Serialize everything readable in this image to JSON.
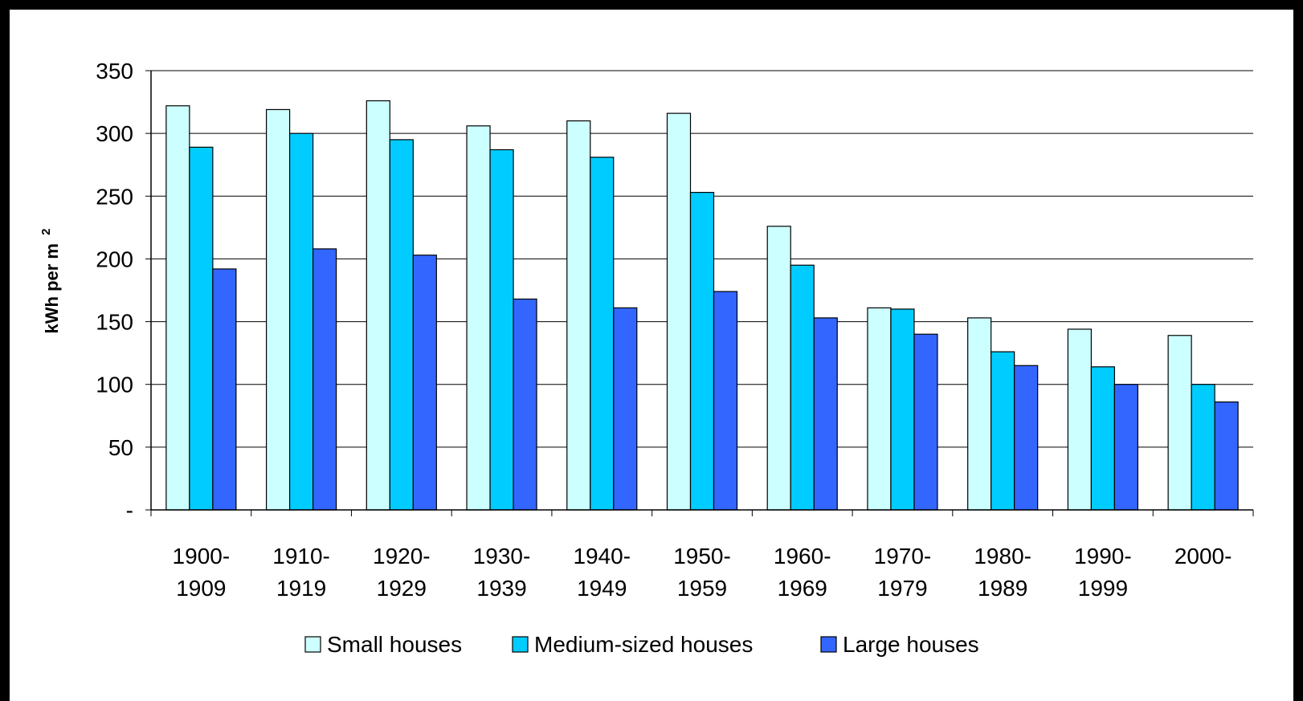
{
  "chart_data": {
    "type": "bar",
    "ylabel": "kWh per m",
    "ylabel_superscript": "2",
    "ylim": [
      0,
      350
    ],
    "ytick_step": 50,
    "ytick_labels": [
      "-",
      "50",
      "100",
      "150",
      "200",
      "250",
      "300",
      "350"
    ],
    "grid": true,
    "legend_position": "bottom",
    "categories": [
      [
        "1900-",
        "1909"
      ],
      [
        "1910-",
        "1919"
      ],
      [
        "1920-",
        "1929"
      ],
      [
        "1930-",
        "1939"
      ],
      [
        "1940-",
        "1949"
      ],
      [
        "1950-",
        "1959"
      ],
      [
        "1960-",
        "1969"
      ],
      [
        "1970-",
        "1979"
      ],
      [
        "1980-",
        "1989"
      ],
      [
        "1990-",
        "1999"
      ],
      [
        "2000-",
        ""
      ]
    ],
    "series": [
      {
        "name": "Small houses",
        "color": "#ccffff",
        "values": [
          322,
          319,
          326,
          306,
          310,
          316,
          226,
          161,
          153,
          144,
          139
        ]
      },
      {
        "name": "Medium-sized houses",
        "color": "#00ccff",
        "values": [
          289,
          300,
          295,
          287,
          281,
          253,
          195,
          160,
          126,
          114,
          100
        ]
      },
      {
        "name": "Large houses",
        "color": "#3366ff",
        "values": [
          192,
          208,
          203,
          168,
          161,
          174,
          153,
          140,
          115,
          100,
          86
        ]
      }
    ]
  }
}
